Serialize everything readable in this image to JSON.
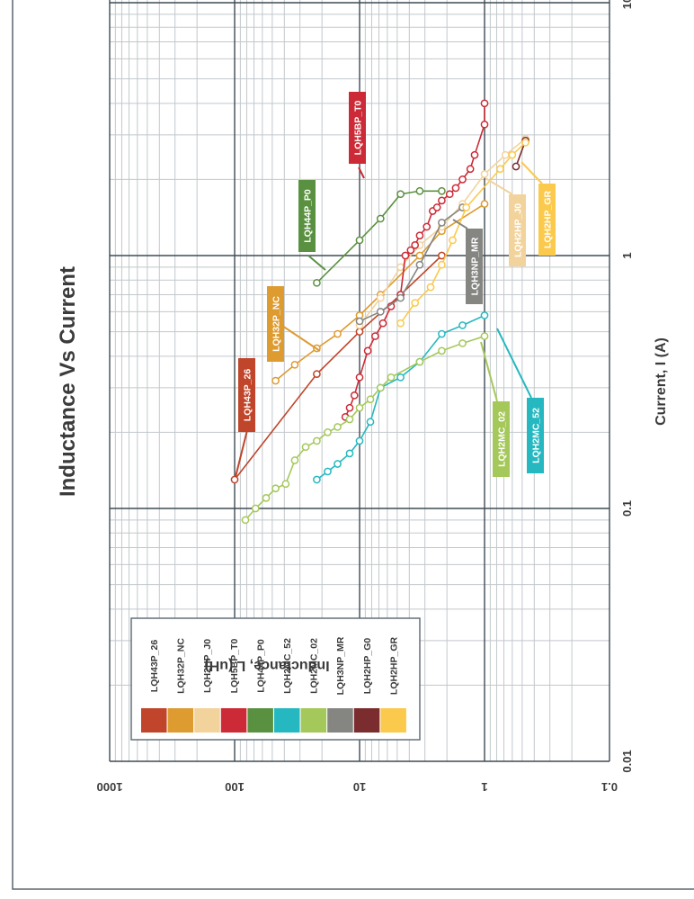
{
  "chart_data": {
    "type": "line",
    "title": "Inductance Vs Current",
    "xlabel": "Current, I (A)",
    "ylabel": "Inductance, L (uH)",
    "x_scale": "log",
    "y_scale": "log",
    "xlim": [
      0.01,
      10
    ],
    "ylim": [
      0.1,
      1000
    ],
    "x_ticks": [
      "0.01",
      "0.1",
      "1",
      "10"
    ],
    "y_ticks": [
      "1000",
      "100",
      "10",
      "1",
      "0.1"
    ],
    "grid": true,
    "legend_position": "left",
    "series": [
      {
        "name": "LQH43P_26",
        "color": "#c0452a",
        "x": [
          0.13,
          0.34,
          0.5,
          0.7,
          1.0
        ],
        "y": [
          100,
          22,
          10,
          4.7,
          2.2
        ]
      },
      {
        "name": "LQH32P_NC",
        "color": "#dd9b30",
        "x": [
          0.32,
          0.37,
          0.43,
          0.49,
          0.58,
          0.7,
          1.0,
          1.25,
          1.6
        ],
        "y": [
          47,
          33,
          22,
          15,
          10,
          6.8,
          3.3,
          2.2,
          1.0
        ]
      },
      {
        "name": "LQH2HP_J0",
        "color": "#f2d39c",
        "x": [
          0.53,
          0.68,
          0.9,
          1.1,
          1.3,
          1.6,
          2.1,
          2.5,
          2.9
        ],
        "y": [
          10,
          6.8,
          4.7,
          3.3,
          2.2,
          1.5,
          1.0,
          0.68,
          0.47
        ]
      },
      {
        "name": "LQH5BP_T0",
        "color": "#cc2a36",
        "x": [
          0.23,
          0.25,
          0.28,
          0.33,
          0.42,
          0.48,
          0.54,
          0.63,
          0.7,
          1.0,
          1.05,
          1.1,
          1.2,
          1.3,
          1.5,
          1.55,
          1.65,
          1.75,
          1.85,
          2.0,
          2.2,
          2.5,
          3.3,
          4.0
        ],
        "y": [
          13,
          12,
          11,
          10,
          8.6,
          7.5,
          6.5,
          5.6,
          4.7,
          4.3,
          3.9,
          3.6,
          3.3,
          2.9,
          2.6,
          2.4,
          2.2,
          1.9,
          1.7,
          1.5,
          1.3,
          1.2,
          1.0,
          1.0
        ]
      },
      {
        "name": "LQH44P_P0",
        "color": "#5a9140",
        "x": [
          0.78,
          1.15,
          1.4,
          1.75,
          1.8,
          1.8
        ],
        "y": [
          22,
          10,
          6.8,
          4.7,
          3.3,
          2.2
        ]
      },
      {
        "name": "LQH2MC_52",
        "color": "#26b8c0",
        "x": [
          0.13,
          0.14,
          0.15,
          0.165,
          0.185,
          0.22,
          0.3,
          0.33,
          0.38,
          0.49,
          0.53,
          0.58
        ],
        "y": [
          22,
          18,
          15,
          12,
          10,
          8.2,
          6.8,
          4.7,
          3.3,
          2.2,
          1.5,
          1.0
        ]
      },
      {
        "name": "LQH2MC_02",
        "color": "#a5c85a",
        "x": [
          0.09,
          0.1,
          0.11,
          0.12,
          0.125,
          0.155,
          0.175,
          0.185,
          0.2,
          0.21,
          0.225,
          0.25,
          0.27,
          0.3,
          0.33,
          0.38,
          0.42,
          0.45,
          0.48
        ],
        "y": [
          82,
          68,
          56,
          47,
          39,
          33,
          27,
          22,
          18,
          15,
          12,
          10,
          8.2,
          6.8,
          5.6,
          3.3,
          2.2,
          1.5,
          1.0
        ]
      },
      {
        "name": "LQH3NP_MR",
        "color": "#858582",
        "x": [
          0.55,
          0.6,
          0.68,
          0.92,
          1.35,
          1.55
        ],
        "y": [
          10,
          6.8,
          4.7,
          3.3,
          2.2,
          1.5
        ]
      },
      {
        "name": "LQH2HP_G0",
        "color": "#7a2c2e",
        "x": [
          2.85,
          2.25
        ],
        "y": [
          0.47,
          0.56
        ]
      },
      {
        "name": "LQH2HP_GR",
        "color": "#fbc94c",
        "x": [
          0.54,
          0.65,
          0.75,
          0.92,
          1.15,
          1.55,
          2.2,
          2.5,
          2.8
        ],
        "y": [
          4.7,
          3.6,
          2.7,
          2.2,
          1.8,
          1.4,
          0.75,
          0.6,
          0.47
        ]
      }
    ],
    "callouts": [
      "LQH43P_26",
      "LQH32P_NC",
      "LQH44P_P0",
      "LQH5BP_T0",
      "LQH3NP_MR",
      "LQH2HP_J0",
      "LQH2HP_GR",
      "LQH2MC_02",
      "LQH2MC_52"
    ],
    "colors": {
      "grid_major": "#3f4b55",
      "grid_minor": "#c2c8cc",
      "frame": "#5a6770"
    }
  }
}
